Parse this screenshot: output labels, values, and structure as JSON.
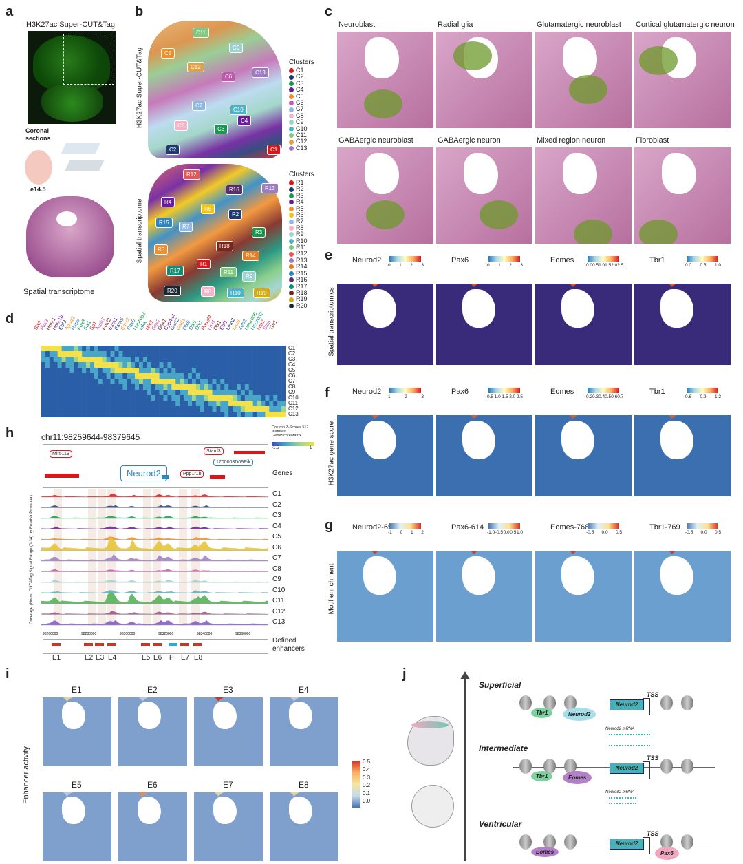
{
  "panel_labels": {
    "a": "a",
    "b": "b",
    "c": "c",
    "d": "d",
    "e": "e",
    "f": "f",
    "g": "g",
    "h": "h",
    "i": "i",
    "j": "j"
  },
  "panel_a": {
    "title": "H3K27ac Super-CUT&Tag",
    "coronal": "Coronal sections",
    "age": "e14.5",
    "bottom": "Spatial transcriptome"
  },
  "panel_b": {
    "top_ylabel": "H3K27ac Super-CUT&Tag",
    "bottom_ylabel": "Spatial transcriptome",
    "legend_title_top": "Clusters",
    "legend_title_bottom": "Clusters",
    "clusters_top": [
      {
        "name": "C1",
        "color": "#d7191c"
      },
      {
        "name": "C2",
        "color": "#1f3b73"
      },
      {
        "name": "C3",
        "color": "#1a9850"
      },
      {
        "name": "C4",
        "color": "#6a1b9a"
      },
      {
        "name": "C5",
        "color": "#f28e2b"
      },
      {
        "name": "C6",
        "color": "#c158b0"
      },
      {
        "name": "C7",
        "color": "#8fb8e0"
      },
      {
        "name": "C8",
        "color": "#f5b3c8"
      },
      {
        "name": "C9",
        "color": "#9bd3cf"
      },
      {
        "name": "C10",
        "color": "#4bb3c6"
      },
      {
        "name": "C11",
        "color": "#7fc97f"
      },
      {
        "name": "C12",
        "color": "#e0a34a"
      },
      {
        "name": "C13",
        "color": "#9e7cc1"
      }
    ],
    "clusters_bottom": [
      {
        "name": "R1",
        "color": "#d7191c"
      },
      {
        "name": "R2",
        "color": "#1f3b73"
      },
      {
        "name": "R3",
        "color": "#1a9850"
      },
      {
        "name": "R4",
        "color": "#6a1b9a"
      },
      {
        "name": "R5",
        "color": "#f28e2b"
      },
      {
        "name": "R6",
        "color": "#f1c40f"
      },
      {
        "name": "R7",
        "color": "#8fb8e0"
      },
      {
        "name": "R8",
        "color": "#f5b3c8"
      },
      {
        "name": "R9",
        "color": "#9bd3cf"
      },
      {
        "name": "R10",
        "color": "#4bb3c6"
      },
      {
        "name": "R11",
        "color": "#7fc97f"
      },
      {
        "name": "R12",
        "color": "#e05a5a"
      },
      {
        "name": "R13",
        "color": "#9e7cc1"
      },
      {
        "name": "R14",
        "color": "#e67e22"
      },
      {
        "name": "R15",
        "color": "#2e86c1"
      },
      {
        "name": "R16",
        "color": "#5b2c6f"
      },
      {
        "name": "R17",
        "color": "#138d75"
      },
      {
        "name": "R18",
        "color": "#7b241c"
      },
      {
        "name": "R19",
        "color": "#d4ac0d"
      },
      {
        "name": "R20",
        "color": "#1b2631"
      }
    ],
    "top_tags": [
      "C11",
      "C5",
      "C9",
      "C12",
      "C6",
      "C13",
      "C7",
      "C10",
      "C8",
      "C3",
      "C4",
      "C2",
      "C1"
    ],
    "bottom_tags": [
      "R12",
      "R16",
      "R13",
      "R4",
      "R6",
      "R2",
      "R15",
      "R7",
      "R3",
      "R5",
      "R18",
      "R14",
      "R17",
      "R1",
      "R11",
      "R9",
      "R20",
      "R8",
      "R10",
      "R19"
    ]
  },
  "panel_c": {
    "titles": [
      "Neuroblast",
      "Radial glia",
      "Glutamatergic neuroblast",
      "Cortical glutamatergic neuron",
      "GABAergic neuroblast",
      "GABAergic neuron",
      "Mixed region neuron",
      "Fibroblast"
    ]
  },
  "panel_d": {
    "genes": [
      "Six3",
      "Pitx3",
      "Hmx1",
      "Hmx1b",
      "Ebf3",
      "Apoa2",
      "Rsp5",
      "Fox3",
      "Six1",
      "Sp7",
      "Atoh7",
      "Foxf2",
      "Esrn1",
      "Esrn5",
      "Emx2",
      "Pax6",
      "Neurog2",
      "Mkx",
      "Mic1",
      "Gsx2",
      "Gsx1",
      "Cyp4a4",
      "Gad2",
      "Gad1",
      "Dlx6",
      "Dlx5",
      "Dlx1",
      "Pou3f4",
      "Lhx1",
      "Dlx1",
      "Ebf1",
      "Lmo2",
      "Lhx6",
      "Zeb2",
      "Neurod6",
      "Neurod2",
      "Nfe2",
      "Stcb",
      "Tbr1"
    ],
    "rows": [
      "C1",
      "C2",
      "C3",
      "C4",
      "C5",
      "C6",
      "C7",
      "C8",
      "C9",
      "C10",
      "C11",
      "C12",
      "C13"
    ]
  },
  "panel_e": {
    "ylabel": "Spatial transcriptomics",
    "maps": [
      {
        "gene": "Neurod2",
        "ticks": [
          "0",
          "1",
          "2",
          "3"
        ]
      },
      {
        "gene": "Pax6",
        "ticks": [
          "0",
          "1",
          "2",
          "3"
        ]
      },
      {
        "gene": "Eomes",
        "ticks": [
          "0.0",
          "0.5",
          "1.0",
          "1.5",
          "2.0",
          "2.5"
        ]
      },
      {
        "gene": "Tbr1",
        "ticks": [
          "0.0",
          "0.5",
          "1.0"
        ]
      }
    ]
  },
  "panel_f": {
    "ylabel": "H3K27ac gene score",
    "maps": [
      {
        "gene": "Neurod2",
        "ticks": [
          "1",
          "2",
          "3"
        ]
      },
      {
        "gene": "Pax6",
        "ticks": [
          "0.5",
          "1.0",
          "1.5",
          "2.0",
          "2.5"
        ]
      },
      {
        "gene": "Eomes",
        "ticks": [
          "0.2",
          "0.3",
          "0.4",
          "0.5",
          "0.6",
          "0.7"
        ]
      },
      {
        "gene": "Tbr1",
        "ticks": [
          "0.6",
          "0.9",
          "1.2"
        ]
      }
    ]
  },
  "panel_g": {
    "ylabel": "Motif enrichment",
    "maps": [
      {
        "gene": "Neurod2-69",
        "ticks": [
          "-1",
          "0",
          "1",
          "2"
        ]
      },
      {
        "gene": "Pax6-614",
        "ticks": [
          "-1.0",
          "-0.5",
          "0.0",
          "0.5",
          "1.0"
        ]
      },
      {
        "gene": "Eomes-768",
        "ticks": [
          "-0.5",
          "0.0",
          "0.5"
        ]
      },
      {
        "gene": "Tbr1-769",
        "ticks": [
          "-0.5",
          "0.0",
          "0.5"
        ]
      }
    ]
  },
  "panel_h": {
    "locus": "chr11:98259644-98379645",
    "colorkey": {
      "title": "Column Z-Scores 517 features GeneScoreMatrix",
      "min": "-1.5",
      "max": "1"
    },
    "genes": [
      "Mir5119",
      "Stard3",
      "1700003D09Rik",
      "Neurod2",
      "Ppp1r1b"
    ],
    "genes_label": "Genes",
    "ylabel": "Coverage (Norm. CUT&Tag Signal Range (0-34) by ReadsInPromoter)",
    "tracks": [
      "C1",
      "C2",
      "C3",
      "C4",
      "C5",
      "C6",
      "C7",
      "C8",
      "C9",
      "C10",
      "C11",
      "C12",
      "C13"
    ],
    "xticks": [
      "98260000",
      "98280000",
      "98300000",
      "98320000",
      "98340000",
      "98360000"
    ],
    "enh_label": "Defined enhancers",
    "enhancers": [
      "E1",
      "E2",
      "E3",
      "E4",
      "E5",
      "E6",
      "P",
      "E7",
      "E8"
    ]
  },
  "panel_i": {
    "ylabel": "Enhancer activity",
    "maps": [
      "E1",
      "E2",
      "E3",
      "E4",
      "E5",
      "E6",
      "E7",
      "E8"
    ],
    "scale": [
      "0.5",
      "0.4",
      "0.3",
      "0.2",
      "0.1",
      "0.0"
    ]
  },
  "panel_j": {
    "layers": [
      "Superficial",
      "Intermediate",
      "Ventricular"
    ],
    "gene_box": "Neurod2",
    "tss": "TSS",
    "mrna": "Neurod2 mRNA",
    "factors_sup": [
      "Tbr1",
      "Neurod2"
    ],
    "factors_int": [
      "Tbr1",
      "Eomes"
    ],
    "factors_ven": [
      "Eomes",
      "Pax6"
    ]
  },
  "colors": {
    "tissue_pink": "#c98fb4",
    "tissue_violet": "#b16aa3",
    "highlight_green": "#6c9a2a",
    "heat_red": "#d73027",
    "heat_blue": "#4575b4"
  }
}
